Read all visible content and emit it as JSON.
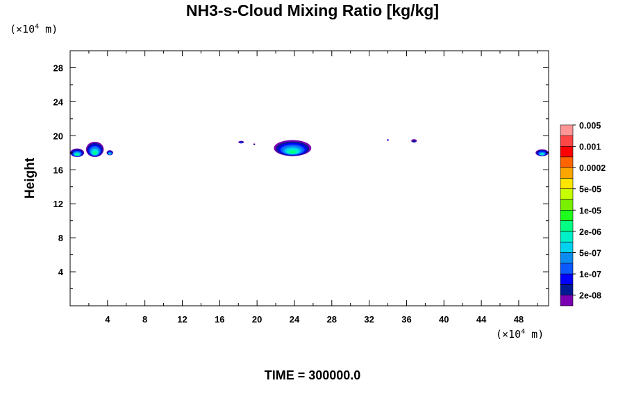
{
  "chart_data": {
    "type": "heatmap",
    "title": "NH3-s-Cloud Mixing Ratio [kg/kg]",
    "ylabel": "Height",
    "xlabel": "",
    "x_unit": {
      "prefix": "(×10",
      "exp": "4",
      "suffix": " m)"
    },
    "y_unit": {
      "prefix": "(×10",
      "exp": "4",
      "suffix": " m)"
    },
    "xlim": [
      0,
      51.2
    ],
    "ylim": [
      0,
      30
    ],
    "x_ticks": [
      4,
      8,
      12,
      16,
      20,
      24,
      28,
      32,
      36,
      40,
      44,
      48
    ],
    "y_ticks": [
      4,
      8,
      12,
      16,
      20,
      24,
      28
    ],
    "colorbar": {
      "colors": [
        "#7b00b4",
        "#001a96",
        "#0000ff",
        "#0a5aff",
        "#0a8cf0",
        "#00d2f0",
        "#00f0c8",
        "#00ff82",
        "#1eff1e",
        "#78f000",
        "#c8ff00",
        "#ffe600",
        "#ffa500",
        "#ff6400",
        "#ff0000",
        "#ff4646",
        "#ff9696"
      ],
      "labels": [
        "2e-08",
        "1e-07",
        "5e-07",
        "2e-06",
        "1e-05",
        "5e-05",
        "0.0002",
        "0.001",
        "0.005"
      ]
    },
    "cloud_features": [
      {
        "x_range": [
          0,
          1.5
        ],
        "y_range": [
          17.5,
          18.5
        ],
        "max_level": 7
      },
      {
        "x_range": [
          1.7,
          3.6
        ],
        "y_range": [
          17.5,
          19.3
        ],
        "max_level": 7
      },
      {
        "x_range": [
          3.9,
          4.6
        ],
        "y_range": [
          17.7,
          18.3
        ],
        "max_level": 6
      },
      {
        "x_range": [
          18.0,
          18.6
        ],
        "y_range": [
          19.1,
          19.4
        ],
        "max_level": 3
      },
      {
        "x_range": [
          19.6,
          19.8
        ],
        "y_range": [
          18.9,
          19.1
        ],
        "max_level": 1
      },
      {
        "x_range": [
          21.8,
          25.8
        ],
        "y_range": [
          17.6,
          19.5
        ],
        "max_level": 7
      },
      {
        "x_range": [
          33.9,
          34.1
        ],
        "y_range": [
          19.4,
          19.6
        ],
        "max_level": 2
      },
      {
        "x_range": [
          36.5,
          37.1
        ],
        "y_range": [
          19.2,
          19.6
        ],
        "max_level": 1
      },
      {
        "x_range": [
          49.8,
          51.2
        ],
        "y_range": [
          17.6,
          18.4
        ],
        "max_level": 6
      }
    ]
  },
  "footer": {
    "time_label": "TIME = 300000.0"
  }
}
